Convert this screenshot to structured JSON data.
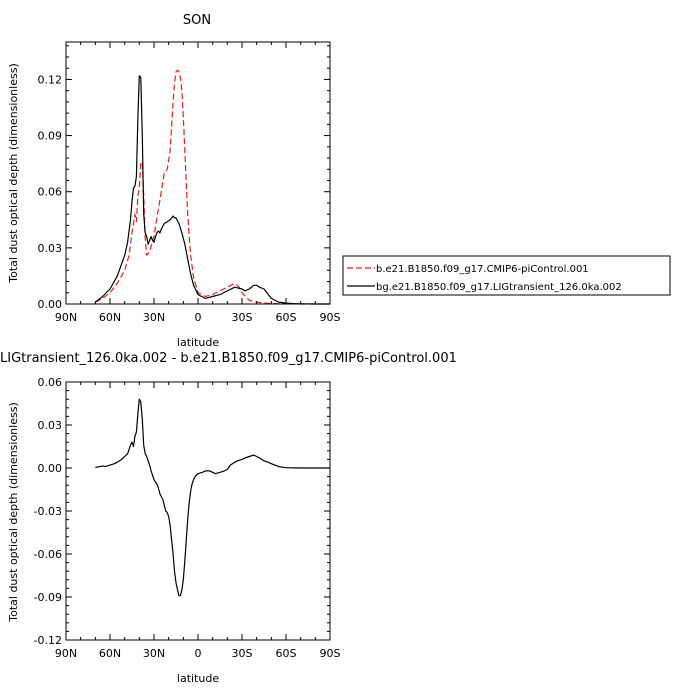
{
  "chart_data": [
    {
      "type": "line",
      "title": "SON",
      "xlabel": "latitude",
      "ylabel": "Total dust optical depth (dimensionless)",
      "xlim": [
        90,
        -90
      ],
      "ylim": [
        0,
        0.14
      ],
      "x_ticks": [
        90,
        60,
        30,
        0,
        -30,
        -60,
        -90
      ],
      "x_tick_labels": [
        "90N",
        "60N",
        "30N",
        "0",
        "30S",
        "60S",
        "90S"
      ],
      "y_ticks": [
        0,
        0.03,
        0.06,
        0.09,
        0.12
      ],
      "y_tick_labels": [
        "0.00",
        "0.03",
        "0.06",
        "0.09",
        "0.12"
      ],
      "legend": "right",
      "grid": false,
      "series": [
        {
          "name": "b.e21.B1850.f09_g17.CMIP6-piControl.001",
          "color": "#e02020",
          "dash": "dashed",
          "x": [
            70,
            65,
            60,
            55,
            50,
            47,
            45,
            43,
            42,
            41,
            40,
            39,
            38,
            37,
            36,
            35,
            33,
            30,
            28,
            25,
            23,
            21,
            20,
            19,
            18,
            17,
            16,
            15,
            14,
            13,
            12,
            11,
            10,
            9,
            8,
            7,
            6,
            5,
            3,
            0,
            -5,
            -10,
            -15,
            -20,
            -25,
            -28,
            -30,
            -35,
            -40,
            -45,
            -50,
            -60,
            -70,
            -80,
            -90
          ],
          "y": [
            0.001,
            0.003,
            0.006,
            0.011,
            0.018,
            0.026,
            0.038,
            0.048,
            0.044,
            0.058,
            0.062,
            0.075,
            0.076,
            0.058,
            0.035,
            0.026,
            0.028,
            0.036,
            0.046,
            0.06,
            0.07,
            0.072,
            0.077,
            0.082,
            0.095,
            0.108,
            0.118,
            0.124,
            0.125,
            0.124,
            0.121,
            0.114,
            0.1,
            0.082,
            0.064,
            0.048,
            0.036,
            0.026,
            0.014,
            0.006,
            0.004,
            0.005,
            0.007,
            0.009,
            0.011,
            0.009,
            0.006,
            0.002,
            0.001,
            0.0005,
            0.0002,
            0.0001,
            0,
            0,
            0
          ]
        },
        {
          "name": "bg.e21.B1850.f09_g17.LIGtransient_126.0ka.002",
          "color": "#000000",
          "dash": "solid",
          "x": [
            70,
            65,
            60,
            55,
            50,
            48,
            46,
            45,
            44,
            43,
            42,
            41,
            40,
            39,
            38,
            37,
            36,
            35,
            34,
            33,
            32,
            31,
            30,
            29,
            28,
            27,
            26,
            25,
            23,
            21,
            19,
            17,
            16,
            15,
            13,
            11,
            9,
            7,
            5,
            3,
            0,
            -5,
            -10,
            -15,
            -20,
            -25,
            -30,
            -32,
            -35,
            -38,
            -40,
            -42,
            -45,
            -48,
            -50,
            -55,
            -60,
            -65,
            -70,
            -80,
            -90
          ],
          "y": [
            0.001,
            0.004,
            0.008,
            0.015,
            0.026,
            0.033,
            0.045,
            0.055,
            0.062,
            0.063,
            0.068,
            0.1,
            0.122,
            0.121,
            0.09,
            0.048,
            0.038,
            0.036,
            0.032,
            0.034,
            0.036,
            0.034,
            0.033,
            0.036,
            0.038,
            0.039,
            0.038,
            0.04,
            0.043,
            0.044,
            0.045,
            0.047,
            0.046,
            0.046,
            0.043,
            0.038,
            0.032,
            0.024,
            0.016,
            0.01,
            0.005,
            0.003,
            0.004,
            0.005,
            0.007,
            0.009,
            0.008,
            0.007,
            0.008,
            0.01,
            0.01,
            0.009,
            0.008,
            0.005,
            0.003,
            0.001,
            0.0005,
            0.0002,
            0.0001,
            0,
            0
          ]
        }
      ]
    },
    {
      "type": "line",
      "title": "LIGtransient_126.0ka.002 - b.e21.B1850.f09_g17.CMIP6-piControl.001",
      "xlabel": "latitude",
      "ylabel": "Total dust optical depth (dimensionless)",
      "xlim": [
        90,
        -90
      ],
      "ylim": [
        -0.12,
        0.06
      ],
      "x_ticks": [
        90,
        60,
        30,
        0,
        -30,
        -60,
        -90
      ],
      "x_tick_labels": [
        "90N",
        "60N",
        "30N",
        "0",
        "30S",
        "60S",
        "90S"
      ],
      "y_ticks": [
        -0.12,
        -0.09,
        -0.06,
        -0.03,
        0,
        0.03,
        0.06
      ],
      "y_tick_labels": [
        "-0.12",
        "-0.09",
        "-0.06",
        "-0.03",
        "0.00",
        "0.03",
        "0.06"
      ],
      "grid": false,
      "series": [
        {
          "color": "#000000",
          "dash": "solid",
          "x": [
            70,
            68,
            65,
            63,
            60,
            57,
            55,
            52,
            50,
            48,
            47,
            46,
            45,
            44,
            43,
            42,
            41,
            40,
            39,
            38,
            37,
            36,
            35,
            34,
            33,
            32,
            31,
            30,
            29,
            28,
            27,
            26,
            25,
            24,
            23,
            22,
            21,
            20,
            19,
            18,
            17,
            16,
            15,
            14,
            13,
            12,
            11,
            10,
            9,
            8,
            7,
            6,
            5,
            4,
            3,
            2,
            0,
            -3,
            -5,
            -8,
            -10,
            -12,
            -15,
            -18,
            -20,
            -22,
            -25,
            -27,
            -30,
            -32,
            -35,
            -38,
            -40,
            -42,
            -45,
            -48,
            -50,
            -55,
            -60,
            -65,
            -70,
            -75,
            -80,
            -85,
            -90
          ],
          "y": [
            0.0005,
            0.0008,
            0.0015,
            0.001,
            0.002,
            0.003,
            0.004,
            0.006,
            0.008,
            0.01,
            0.013,
            0.016,
            0.018,
            0.015,
            0.022,
            0.025,
            0.038,
            0.048,
            0.046,
            0.034,
            0.016,
            0.01,
            0.008,
            0.005,
            0.002,
            -0.002,
            -0.005,
            -0.008,
            -0.01,
            -0.011,
            -0.014,
            -0.018,
            -0.02,
            -0.022,
            -0.026,
            -0.03,
            -0.031,
            -0.034,
            -0.04,
            -0.05,
            -0.06,
            -0.072,
            -0.08,
            -0.085,
            -0.089,
            -0.089,
            -0.085,
            -0.078,
            -0.065,
            -0.05,
            -0.036,
            -0.024,
            -0.016,
            -0.011,
            -0.008,
            -0.006,
            -0.004,
            -0.003,
            -0.002,
            -0.002,
            -0.003,
            -0.004,
            -0.003,
            -0.002,
            -0.001,
            0.002,
            0.004,
            0.005,
            0.006,
            0.007,
            0.008,
            0.009,
            0.008,
            0.007,
            0.005,
            0.004,
            0.003,
            0.001,
            0.0002,
            0.0001,
            0,
            0,
            0,
            0,
            0
          ]
        }
      ]
    }
  ]
}
